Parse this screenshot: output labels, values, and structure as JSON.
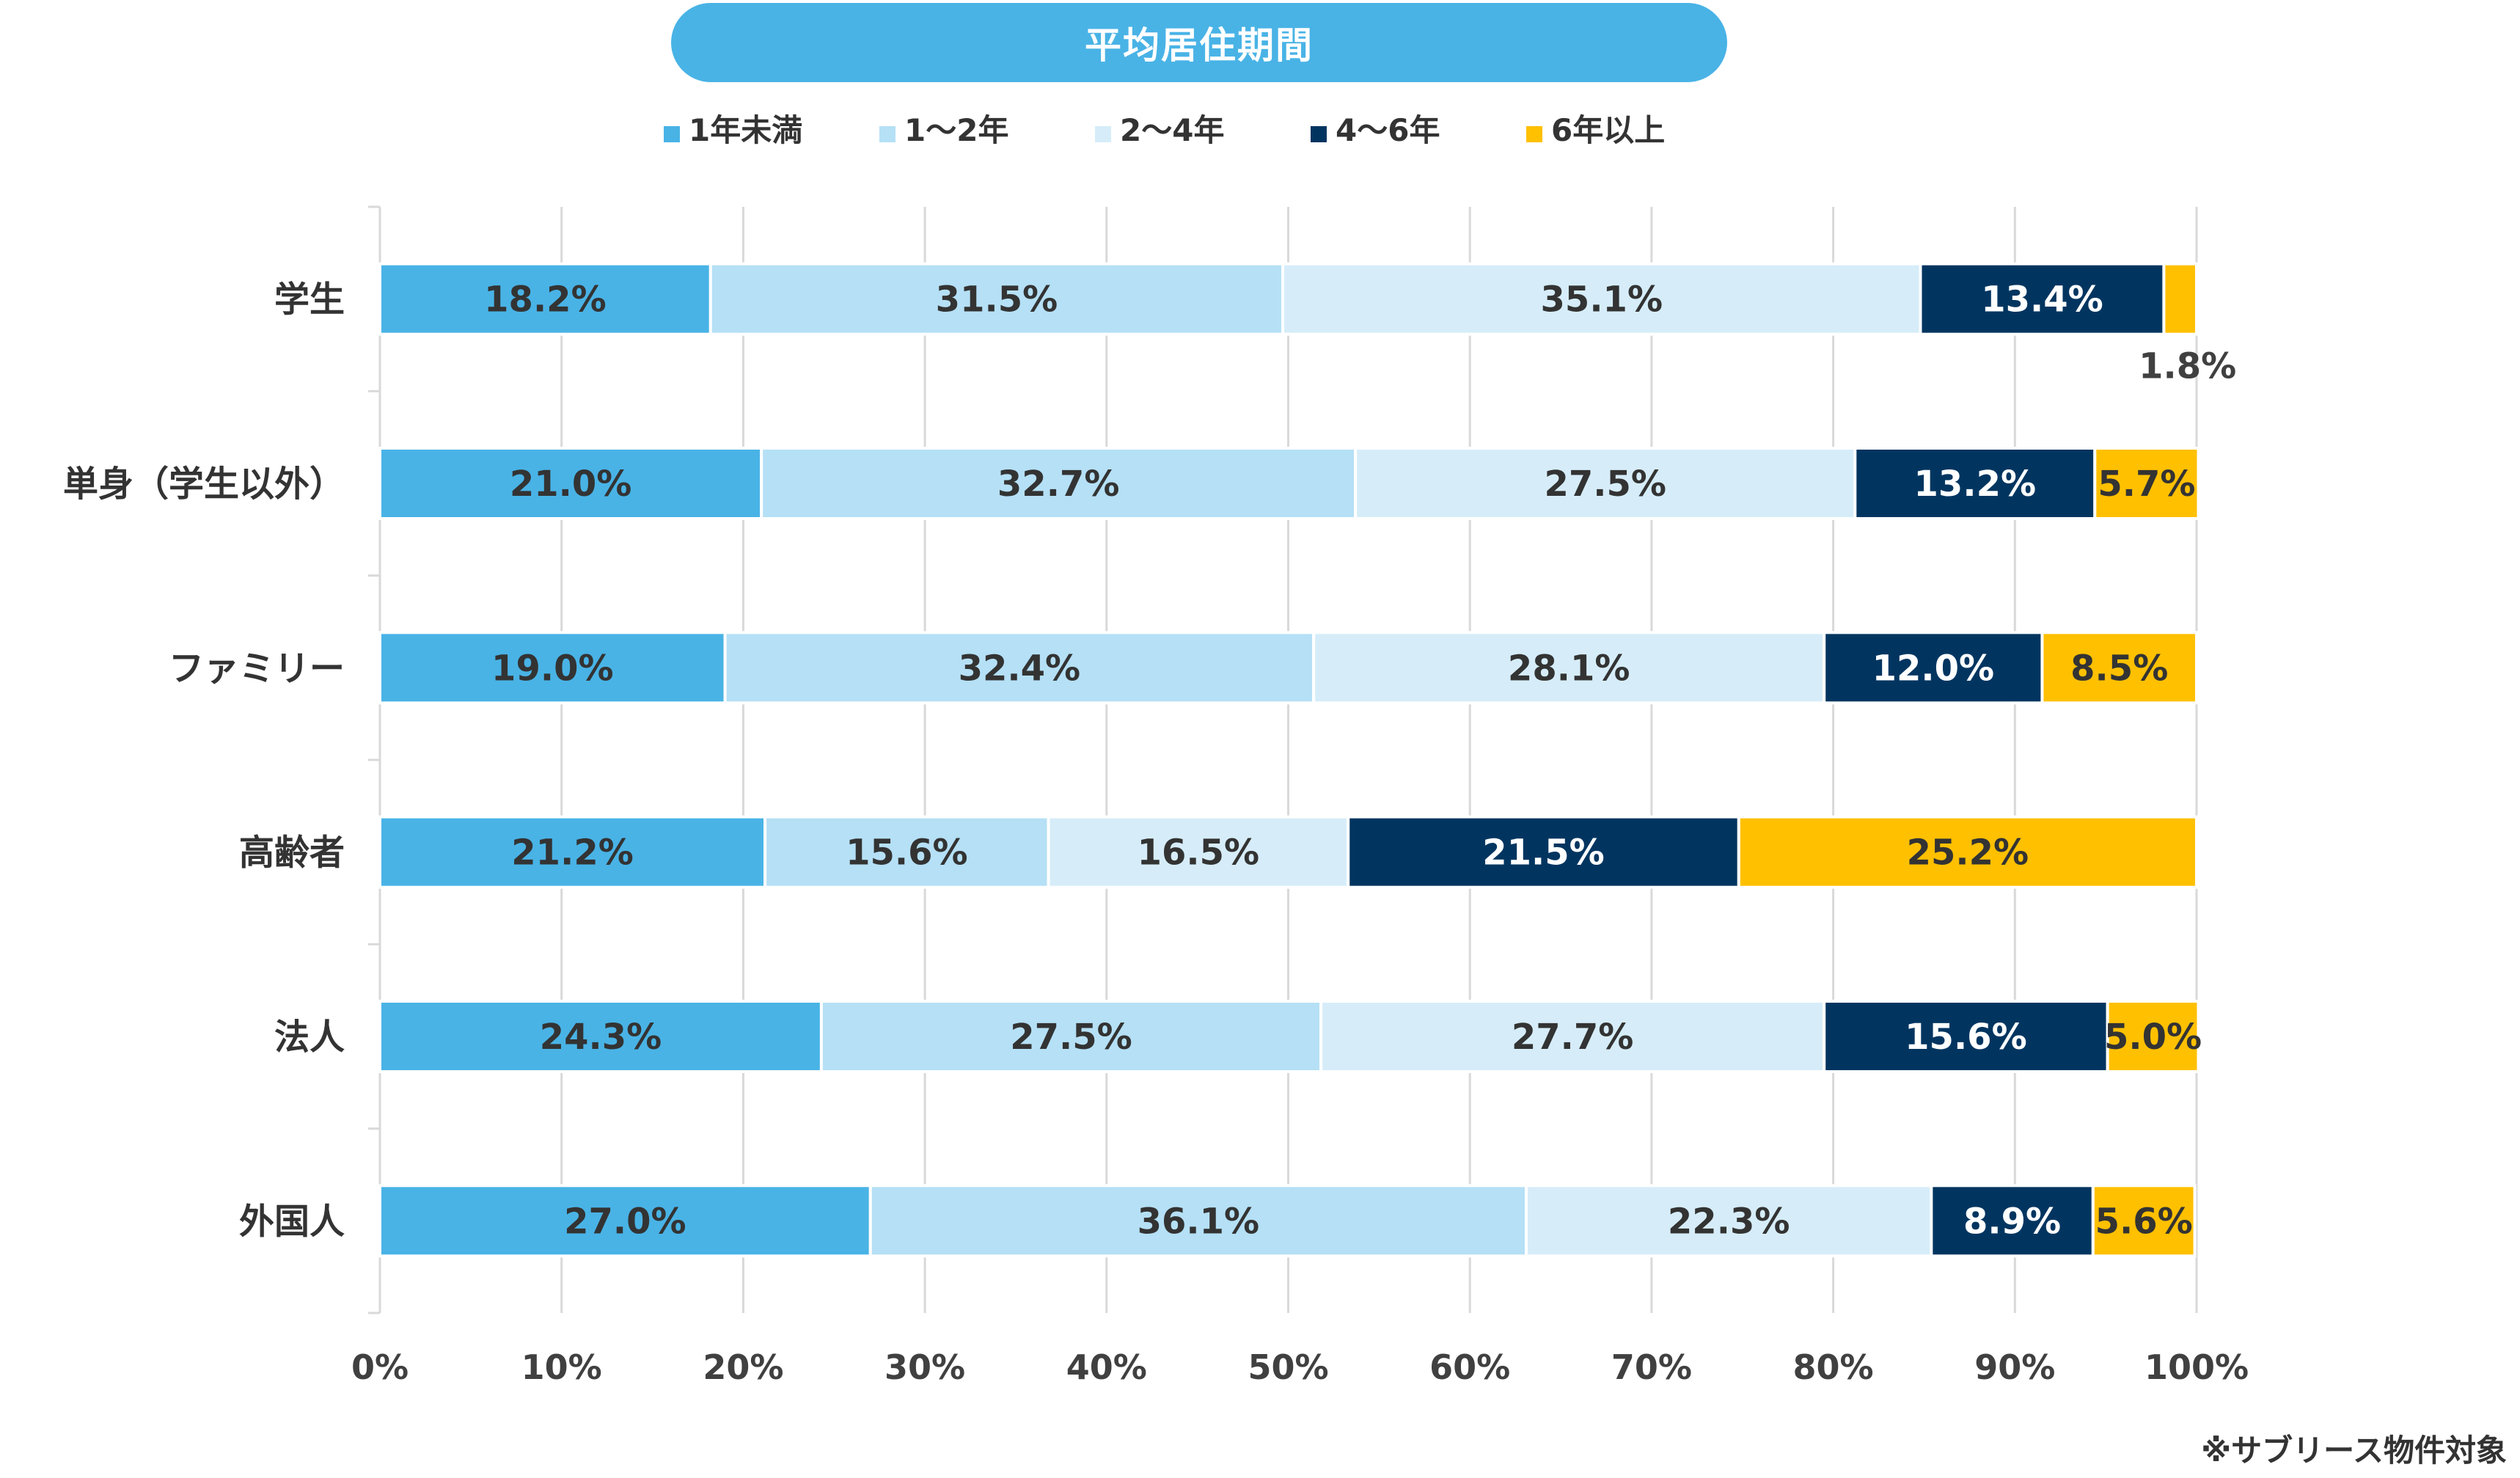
{
  "chart_data": {
    "type": "bar",
    "orientation": "horizontal",
    "stacked": "percent",
    "title": "平均居住期間",
    "categories": [
      "学生",
      "単身（学生以外）",
      "ファミリー",
      "高齢者",
      "法人",
      "外国人"
    ],
    "series": [
      {
        "name": "1年未満",
        "color": "#49b3e6",
        "text_color": "#333333",
        "values": [
          18.2,
          21.0,
          19.0,
          21.2,
          24.3,
          27.0
        ]
      },
      {
        "name": "1〜2年",
        "color": "#b5e0f6",
        "text_color": "#333333",
        "values": [
          31.5,
          32.7,
          32.4,
          15.6,
          27.5,
          36.1
        ]
      },
      {
        "name": "2〜4年",
        "color": "#d6edf9",
        "text_color": "#333333",
        "values": [
          35.1,
          27.5,
          28.1,
          16.5,
          27.7,
          22.3
        ]
      },
      {
        "name": "4〜6年",
        "color": "#013560",
        "text_color": "#ffffff",
        "values": [
          13.4,
          13.2,
          12.0,
          21.5,
          15.6,
          8.9
        ]
      },
      {
        "name": "6年以上",
        "color": "#ffc000",
        "text_color": "#333333",
        "values": [
          1.8,
          5.7,
          8.5,
          25.2,
          5.0,
          5.6
        ]
      }
    ],
    "xlim": [
      0,
      100
    ],
    "x_ticks": [
      "0%",
      "10%",
      "20%",
      "30%",
      "40%",
      "50%",
      "60%",
      "70%",
      "80%",
      "90%",
      "100%"
    ],
    "grid": "vertical",
    "legend_position": "top",
    "label_format": "one-decimal-percent"
  },
  "footnote": "※サブリース物件対象"
}
